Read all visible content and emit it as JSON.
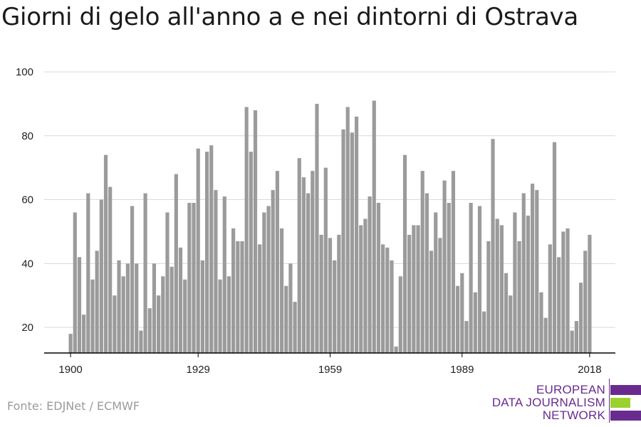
{
  "title": "Giorni di gelo all'anno a e nei dintorni di Ostrava",
  "source": "Fonte: EDJNet / ECMWF",
  "logo": {
    "line1": "EUROPEAN",
    "line2": "DATA JOURNALISM",
    "line3": "NETWORK",
    "colors": [
      "#6a2b8f",
      "#9bd12f",
      "#6a2b8f"
    ]
  },
  "colors": {
    "bar": "#9b9b9b",
    "grid": "#d9d9d9",
    "axis": "#000000"
  },
  "chart_data": {
    "type": "bar",
    "title": "Giorni di gelo all'anno a e nei dintorni di Ostrava",
    "xlabel": "",
    "ylabel": "",
    "ylim": [
      12,
      100
    ],
    "yticks": [
      20,
      40,
      60,
      80,
      100
    ],
    "xticks": [
      1900,
      1929,
      1959,
      1989,
      2018
    ],
    "grid": true,
    "x": [
      1900,
      1901,
      1902,
      1903,
      1904,
      1905,
      1906,
      1907,
      1908,
      1909,
      1910,
      1911,
      1912,
      1913,
      1914,
      1915,
      1916,
      1917,
      1918,
      1919,
      1920,
      1921,
      1922,
      1923,
      1924,
      1925,
      1926,
      1927,
      1928,
      1929,
      1930,
      1931,
      1932,
      1933,
      1934,
      1935,
      1936,
      1937,
      1938,
      1939,
      1940,
      1941,
      1942,
      1943,
      1944,
      1945,
      1946,
      1947,
      1948,
      1949,
      1950,
      1951,
      1952,
      1953,
      1954,
      1955,
      1956,
      1957,
      1958,
      1959,
      1960,
      1961,
      1962,
      1963,
      1964,
      1965,
      1966,
      1967,
      1968,
      1969,
      1970,
      1971,
      1972,
      1973,
      1974,
      1975,
      1976,
      1977,
      1978,
      1979,
      1980,
      1981,
      1982,
      1983,
      1984,
      1985,
      1986,
      1987,
      1988,
      1989,
      1990,
      1991,
      1992,
      1993,
      1994,
      1995,
      1996,
      1997,
      1998,
      1999,
      2000,
      2001,
      2002,
      2003,
      2004,
      2005,
      2006,
      2007,
      2008,
      2009,
      2010,
      2011,
      2012,
      2013,
      2014,
      2015,
      2016,
      2017,
      2018
    ],
    "values": [
      18,
      56,
      42,
      24,
      62,
      35,
      44,
      60,
      74,
      64,
      30,
      41,
      36,
      40,
      58,
      40,
      19,
      62,
      26,
      40,
      30,
      36,
      56,
      39,
      68,
      45,
      35,
      59,
      59,
      76,
      41,
      75,
      77,
      63,
      35,
      61,
      36,
      51,
      47,
      47,
      89,
      75,
      88,
      46,
      56,
      58,
      63,
      69,
      51,
      33,
      40,
      28,
      73,
      67,
      62,
      69,
      90,
      49,
      70,
      48,
      41,
      49,
      82,
      89,
      81,
      86,
      52,
      54,
      61,
      91,
      59,
      46,
      45,
      41,
      14,
      36,
      74,
      49,
      52,
      52,
      69,
      62,
      44,
      56,
      48,
      66,
      59,
      69,
      33,
      37,
      22,
      59,
      31,
      58,
      25,
      47,
      79,
      54,
      52,
      37,
      30,
      56,
      47,
      62,
      55,
      65,
      63,
      31,
      23,
      46,
      78,
      42,
      50,
      51,
      19,
      22,
      34,
      44,
      49
    ]
  }
}
